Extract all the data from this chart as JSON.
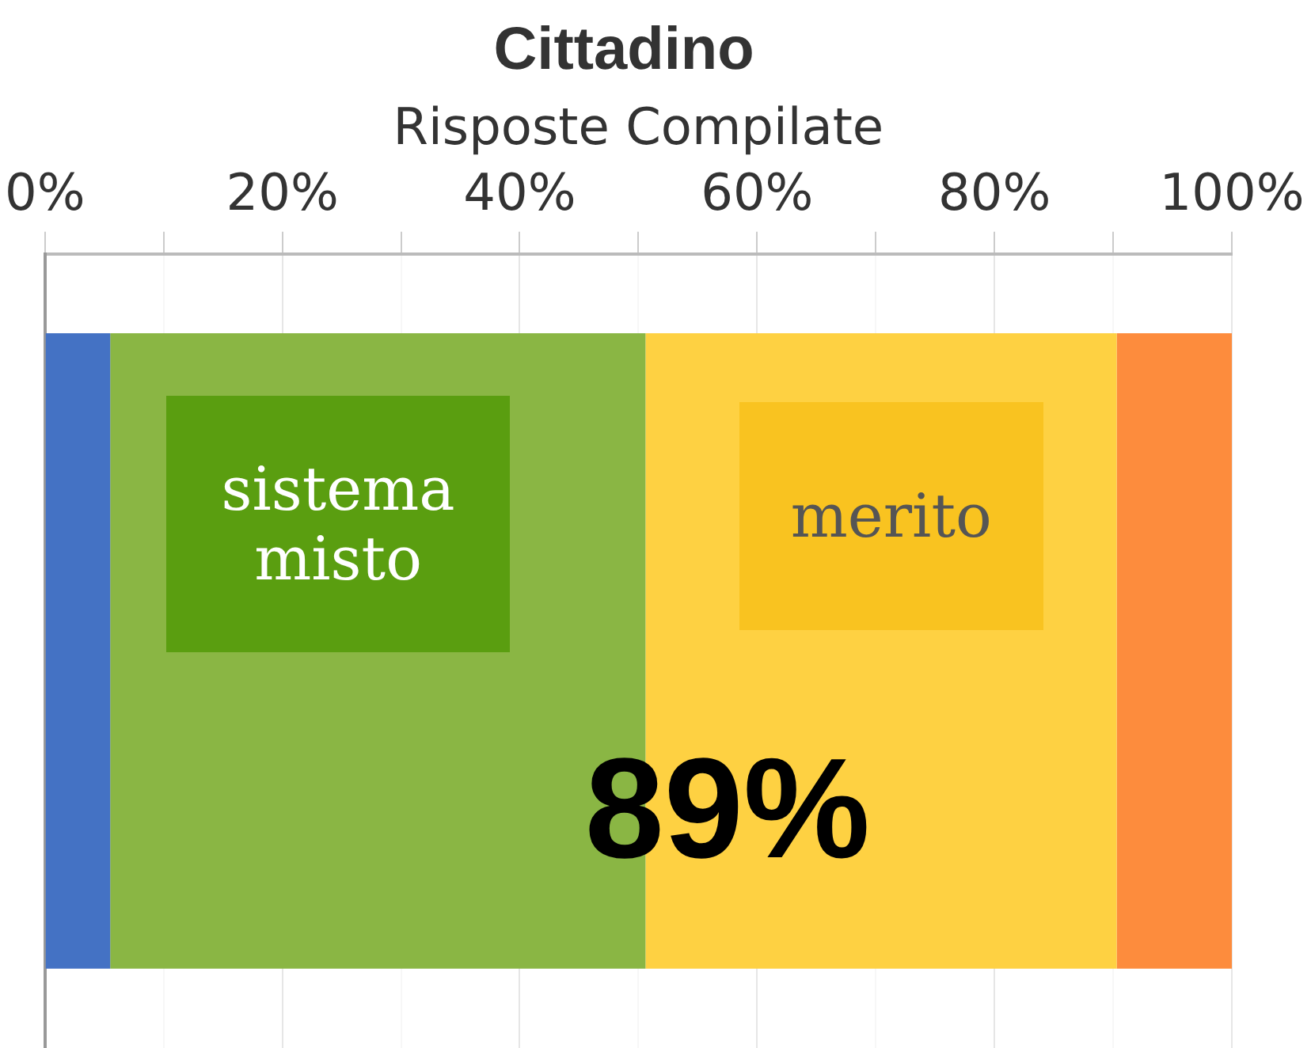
{
  "chart_data": {
    "type": "bar",
    "title": "Cittadino",
    "xlabel": "Risposte Compilate",
    "orientation": "horizontal",
    "stacked": true,
    "categories": [
      null
    ],
    "series": [
      {
        "color": "#4472c4",
        "values": [
          5.5
        ]
      },
      {
        "color": "#8ab644",
        "values": [
          45.1
        ]
      },
      {
        "color": "#fed142",
        "values": [
          39.7
        ]
      },
      {
        "color": "#fd8c3d",
        "values": [
          9.7
        ]
      }
    ],
    "xlim": [
      0,
      100
    ],
    "xticks": [
      {
        "value": 0,
        "label": "0%"
      },
      {
        "value": 10,
        "label": null
      },
      {
        "value": 20,
        "label": "20%"
      },
      {
        "value": 30,
        "label": null
      },
      {
        "value": 40,
        "label": "40%"
      },
      {
        "value": 50,
        "label": null
      },
      {
        "value": 60,
        "label": "60%"
      },
      {
        "value": 70,
        "label": null
      },
      {
        "value": 80,
        "label": "80%"
      },
      {
        "value": 90,
        "label": null
      },
      {
        "value": 100,
        "label": "100%"
      }
    ],
    "grid": "x",
    "legend": false,
    "annotations": [
      "sistema misto",
      "merito",
      "89%"
    ]
  }
}
